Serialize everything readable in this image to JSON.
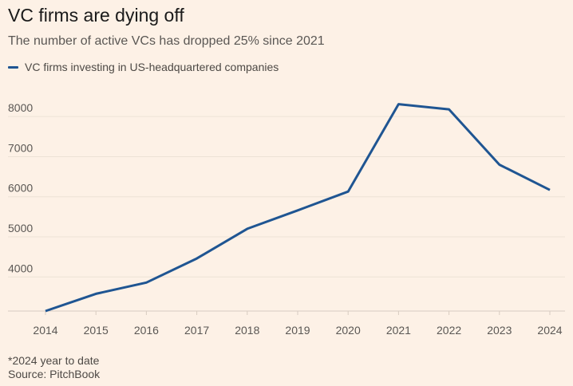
{
  "title": "VC firms are dying off",
  "subtitle": "The number of active VCs has dropped 25% since 2021",
  "footnote": "*2024 year to date",
  "source": "Source: PitchBook",
  "colors": {
    "background": "#fdf1e6",
    "line": "#1f5592",
    "grid": "#ede2d6",
    "axis": "#d8ccc1"
  },
  "chart_data": {
    "type": "line",
    "title": "VC firms are dying off",
    "subtitle": "The number of active VCs has dropped 25% since 2021",
    "x": [
      2014,
      2015,
      2016,
      2017,
      2018,
      2019,
      2020,
      2021,
      2022,
      2023,
      2024
    ],
    "series": [
      {
        "name": "VC firms investing in US-headquartered companies",
        "values": [
          3150,
          3580,
          3860,
          4460,
          5200,
          5660,
          6130,
          8310,
          8180,
          6800,
          6170
        ]
      }
    ],
    "xlim": [
      2014,
      2024
    ],
    "ylim": [
      3150,
      8600
    ],
    "yticks": [
      4000,
      5000,
      6000,
      7000,
      8000
    ],
    "xticks": [
      "2014",
      "2015",
      "2016",
      "2017",
      "2018",
      "2019",
      "2020",
      "2021",
      "2022",
      "2023",
      "2024"
    ],
    "xlabel": "",
    "ylabel": "",
    "grid": true,
    "legend": "top-left"
  }
}
